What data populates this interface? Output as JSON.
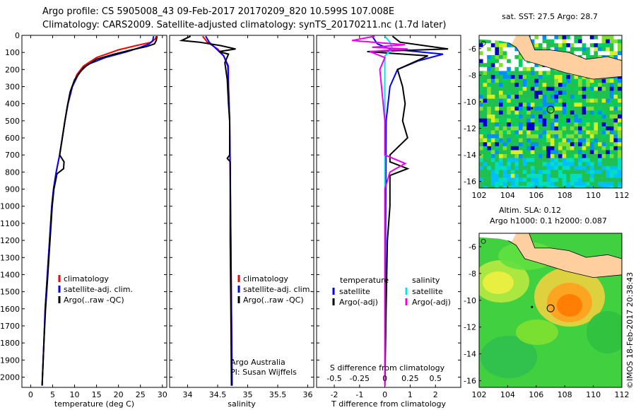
{
  "header": {
    "line1": "Argo profile: CS 5905008_43 09-Feb-2017 20170209_820 10.599S 107.008E",
    "line2": "Climatology: CARS2009. Satellite-adjusted climatology: synTS_20170211.nc (1.7d later)"
  },
  "colors": {
    "climatology": "#ff0000",
    "satellite": "#0000ff",
    "argo": "#000000",
    "sal_sat": "#00e5e5",
    "sal_argo": "#ee00ee",
    "land": "#ffcfa0"
  },
  "chart_data": [
    {
      "type": "line",
      "id": "temperature",
      "xlabel": "temperature (deg C)",
      "ylabel": "",
      "xlim": [
        -2,
        31
      ],
      "ylim": [
        2060,
        0
      ],
      "xticks": [
        0,
        5,
        10,
        15,
        20,
        25,
        30
      ],
      "yticks": [
        0,
        100,
        200,
        300,
        400,
        500,
        600,
        700,
        800,
        900,
        1000,
        1100,
        1200,
        1300,
        1400,
        1500,
        1600,
        1700,
        1800,
        1900,
        2000
      ],
      "legend": [
        "climatology",
        "satellite-adj. clim.",
        "Argo(..raw -QC)"
      ],
      "series": [
        {
          "name": "climatology",
          "color": "#ff0000",
          "points": [
            [
              28.6,
              5
            ],
            [
              28.4,
              20
            ],
            [
              27.5,
              40
            ],
            [
              24,
              60
            ],
            [
              20,
              85
            ],
            [
              15,
              130
            ],
            [
              12,
              180
            ],
            [
              10.5,
              230
            ],
            [
              9.5,
              300
            ],
            [
              8.5,
              400
            ],
            [
              7.8,
              500
            ],
            [
              7.2,
              600
            ],
            [
              6.6,
              700
            ],
            [
              5.8,
              800
            ],
            [
              5.2,
              900
            ],
            [
              4.8,
              1000
            ],
            [
              4.3,
              1200
            ],
            [
              3.8,
              1400
            ],
            [
              3.3,
              1600
            ],
            [
              3,
              1800
            ],
            [
              2.6,
              2050
            ]
          ]
        },
        {
          "name": "satellite-adj. clim.",
          "color": "#0000ff",
          "points": [
            [
              28,
              5
            ],
            [
              27.8,
              30
            ],
            [
              27,
              50
            ],
            [
              25,
              70
            ],
            [
              22,
              95
            ],
            [
              17,
              130
            ],
            [
              13,
              170
            ],
            [
              11,
              220
            ],
            [
              9.5,
              300
            ],
            [
              8.5,
              400
            ],
            [
              7.8,
              500
            ],
            [
              7.2,
              600
            ],
            [
              6.6,
              700
            ],
            [
              5.8,
              800
            ],
            [
              5.2,
              900
            ],
            [
              4.8,
              1000
            ],
            [
              4.3,
              1200
            ],
            [
              3.8,
              1400
            ],
            [
              3.3,
              1600
            ],
            [
              3,
              1800
            ],
            [
              2.6,
              2050
            ]
          ]
        },
        {
          "name": "Argo(..raw -QC)",
          "color": "#000000",
          "points": [
            [
              28.8,
              5
            ],
            [
              28.6,
              30
            ],
            [
              28.2,
              50
            ],
            [
              26.5,
              65
            ],
            [
              23,
              85
            ],
            [
              19,
              110
            ],
            [
              15,
              140
            ],
            [
              12,
              190
            ],
            [
              10,
              260
            ],
            [
              9,
              330
            ],
            [
              8.3,
              420
            ],
            [
              7.8,
              500
            ],
            [
              7.2,
              600
            ],
            [
              6.6,
              700
            ],
            [
              7.6,
              740
            ],
            [
              7.5,
              780
            ],
            [
              6,
              810
            ],
            [
              5.3,
              900
            ],
            [
              4.9,
              1000
            ],
            [
              4.4,
              1200
            ],
            [
              3.9,
              1400
            ],
            [
              3.4,
              1600
            ],
            [
              3,
              1800
            ],
            [
              2.6,
              2050
            ]
          ]
        }
      ]
    },
    {
      "type": "line",
      "id": "salinity",
      "xlabel": "salinity",
      "xlim": [
        33.7,
        36.1
      ],
      "ylim": [
        2060,
        0
      ],
      "xticks": [
        34,
        34.5,
        35,
        35.5,
        36
      ],
      "yticks": [
        0,
        100,
        200,
        300,
        400,
        500,
        600,
        700,
        800,
        900,
        1000,
        1100,
        1200,
        1300,
        1400,
        1500,
        1600,
        1700,
        1800,
        1900,
        2000
      ],
      "legend": [
        "climatology",
        "satellite-adj. clim.",
        "Argo(..raw -QC)"
      ],
      "annotation": [
        "Argo Australia",
        "PI: Susan Wijffels"
      ],
      "series": [
        {
          "name": "climatology",
          "color": "#ff0000",
          "points": [
            [
              34.25,
              5
            ],
            [
              34.33,
              40
            ],
            [
              34.5,
              80
            ],
            [
              34.6,
              120
            ],
            [
              34.68,
              180
            ],
            [
              34.68,
              300
            ],
            [
              34.7,
              500
            ],
            [
              34.71,
              800
            ],
            [
              34.72,
              1200
            ],
            [
              34.73,
              1600
            ],
            [
              34.74,
              2050
            ]
          ]
        },
        {
          "name": "satellite-adj. clim.",
          "color": "#0000ff",
          "points": [
            [
              34.3,
              5
            ],
            [
              34.36,
              40
            ],
            [
              34.48,
              80
            ],
            [
              34.6,
              120
            ],
            [
              34.67,
              180
            ],
            [
              34.68,
              300
            ],
            [
              34.7,
              500
            ],
            [
              34.71,
              800
            ],
            [
              34.72,
              1200
            ],
            [
              34.73,
              1600
            ],
            [
              34.74,
              2050
            ]
          ]
        },
        {
          "name": "Argo(..raw -QC)",
          "color": "#000000",
          "points": [
            [
              34.05,
              5
            ],
            [
              33.9,
              30
            ],
            [
              34.2,
              40
            ],
            [
              34.55,
              60
            ],
            [
              34.8,
              80
            ],
            [
              34.52,
              95
            ],
            [
              34.68,
              110
            ],
            [
              34.62,
              160
            ],
            [
              34.66,
              260
            ],
            [
              34.68,
              400
            ],
            [
              34.7,
              500
            ],
            [
              34.7,
              700
            ],
            [
              34.66,
              720
            ],
            [
              34.71,
              740
            ],
            [
              34.71,
              1200
            ],
            [
              34.72,
              1600
            ],
            [
              34.73,
              2050
            ]
          ]
        }
      ]
    },
    {
      "type": "line",
      "id": "difference",
      "xlabel": "T difference from climatology",
      "xlabel2": "S difference from climatology",
      "xlim": [
        -2.7,
        3
      ],
      "ylim": [
        2060,
        0
      ],
      "xticks": [
        -2,
        -1,
        0,
        1,
        2
      ],
      "xticks2_labels": [
        "-0.5",
        "-0.25",
        "0",
        "0.25",
        "0.5"
      ],
      "xticks2_pos": [
        -2,
        -1,
        0,
        1,
        2
      ],
      "yticks": [
        0,
        100,
        200,
        300,
        400,
        500,
        600,
        700,
        800,
        900,
        1000,
        1100,
        1200,
        1300,
        1400,
        1500,
        1600,
        1700,
        1800,
        1900,
        2000
      ],
      "legend": {
        "temperature": [
          "satellite",
          "Argo(-adj)"
        ],
        "salinity": [
          "satellite",
          "Argo(-adj)"
        ],
        "temperature_title": "temperature",
        "salinity_title": "salinity"
      },
      "series": [
        {
          "name": "T satellite",
          "color": "#0000ff",
          "points": [
            [
              -0.5,
              5
            ],
            [
              -0.3,
              50
            ],
            [
              0.2,
              80
            ],
            [
              2.3,
              110
            ],
            [
              1.3,
              150
            ],
            [
              0.5,
              200
            ],
            [
              0.2,
              300
            ],
            [
              0.05,
              500
            ],
            [
              0,
              2050
            ]
          ]
        },
        {
          "name": "T Argo(-adj)",
          "color": "#000000",
          "points": [
            [
              0.3,
              5
            ],
            [
              0.6,
              40
            ],
            [
              2.5,
              80
            ],
            [
              -0.7,
              95
            ],
            [
              1.7,
              120
            ],
            [
              0.5,
              200
            ],
            [
              0.7,
              300
            ],
            [
              0.8,
              400
            ],
            [
              0.7,
              500
            ],
            [
              0.9,
              600
            ],
            [
              0.2,
              700
            ],
            [
              0.2,
              740
            ],
            [
              0.9,
              780
            ],
            [
              0.2,
              820
            ],
            [
              0.2,
              1000
            ],
            [
              0.1,
              1200
            ],
            [
              0.05,
              1600
            ],
            [
              0,
              2050
            ]
          ]
        },
        {
          "name": "S satellite",
          "color": "#00e5e5",
          "points": [
            [
              0,
              5
            ],
            [
              0.2,
              40
            ],
            [
              0.3,
              80
            ],
            [
              0,
              120
            ],
            [
              0,
              200
            ],
            [
              0,
              500
            ],
            [
              0,
              2050
            ]
          ]
        },
        {
          "name": "S Argo(-adj)",
          "color": "#ee00ee",
          "points": [
            [
              -0.4,
              5
            ],
            [
              -1.3,
              30
            ],
            [
              0.8,
              55
            ],
            [
              -0.5,
              70
            ],
            [
              0.9,
              80
            ],
            [
              -0.6,
              95
            ],
            [
              0,
              130
            ],
            [
              -0.2,
              200
            ],
            [
              0,
              500
            ],
            [
              0,
              700
            ],
            [
              0.8,
              750
            ],
            [
              0.2,
              800
            ],
            [
              0,
              900
            ],
            [
              0,
              2050
            ]
          ]
        }
      ]
    },
    {
      "type": "heatmap",
      "id": "sst-map",
      "title": "sat. SST: 27.5 Argo: 28.7",
      "xlim": [
        102,
        112
      ],
      "ylim": [
        -16.5,
        -5
      ],
      "xticks": [
        102,
        104,
        106,
        108,
        110,
        112
      ],
      "yticks": [
        -6,
        -8,
        -10,
        -12,
        -14,
        -16
      ],
      "marker": [
        107.008,
        -10.599
      ]
    },
    {
      "type": "heatmap",
      "id": "sla-map",
      "title": "Altim. SLA: 0.12",
      "subtitle": "Argo h1000: 0.1 h2000: 0.087",
      "xlim": [
        102,
        112
      ],
      "ylim": [
        -16.5,
        -5
      ],
      "xticks": [
        102,
        104,
        106,
        108,
        110,
        112
      ],
      "yticks": [
        -6,
        -8,
        -10,
        -12,
        -14,
        -16
      ],
      "marker": [
        107.008,
        -10.599
      ]
    }
  ],
  "footer": {
    "credit": "©IMOS 18-Feb-2017 20:38:43"
  }
}
